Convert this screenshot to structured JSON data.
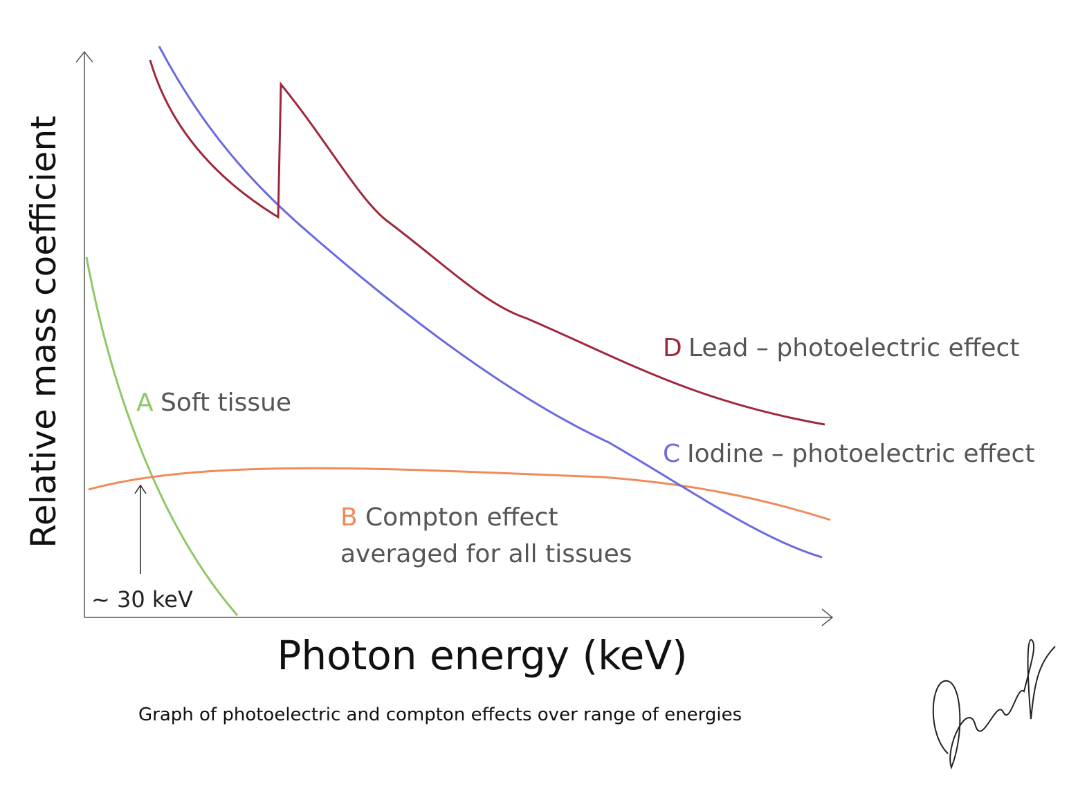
{
  "axes": {
    "y_label": "Relative mass coefficient",
    "x_label": "Photon energy (keV)"
  },
  "curves": [
    {
      "letter": "A",
      "lines": [
        "Soft tissue"
      ]
    },
    {
      "letter": "B",
      "lines": [
        "Compton effect",
        "averaged for all tissues"
      ]
    },
    {
      "letter": "C",
      "lines": [
        "Iodine – photoelectric effect"
      ]
    },
    {
      "letter": "D",
      "lines": [
        "Lead – photoelectric effect"
      ]
    }
  ],
  "annotation": "~ 30 keV",
  "caption": "Graph of photoelectric and compton effects over range of energies"
}
